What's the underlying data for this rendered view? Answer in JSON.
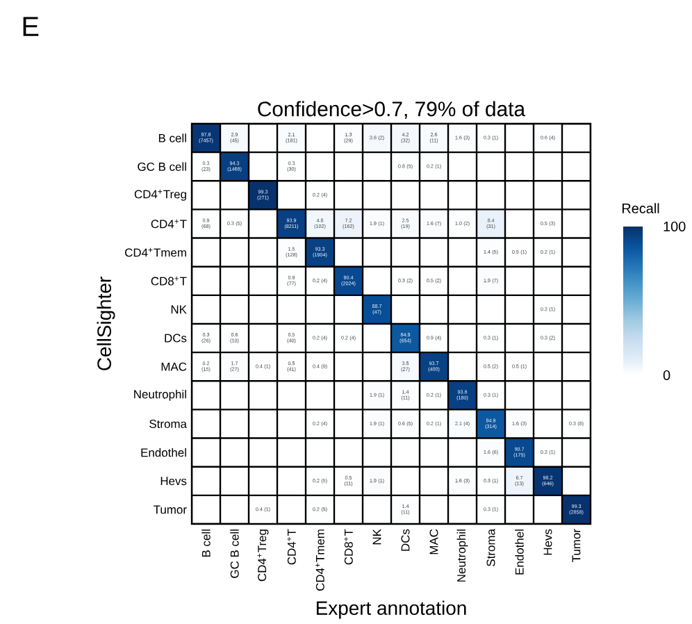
{
  "chart_data": {
    "type": "heatmap",
    "title": "Confidence>0.7, 79% of data",
    "xlabel": "Expert annotation",
    "ylabel": "CellSighter",
    "clabel": "Recall",
    "annotations": [
      "E"
    ],
    "categories": [
      "B cell",
      "GC B cell",
      "CD4$^{+}$Treg",
      "CD4$^{+}$T",
      "CD4$^{+}$Tmem",
      "CD8$^{+}$T",
      "NK",
      "DCs",
      "MAC",
      "Neutrophil",
      "Stroma",
      "Endothel",
      "Hevs",
      "Tumor"
    ],
    "y_categories": [
      "B cell",
      "GC B cell",
      "CD4$^{+}$Treg",
      "CD4$^{+}$T",
      "CD4$^{+}$Tmem",
      "CD8$^{+}$T",
      "NK",
      "DCs",
      "MAC",
      "Neutrophil",
      "Stroma",
      "Endothel",
      "Hevs",
      "Tumor"
    ],
    "cells": [
      [
        97.8,
        2.9,
        null,
        2.1,
        null,
        1.3,
        3.8,
        4.2,
        2.6,
        1.6,
        0.3,
        null,
        0.6,
        null
      ],
      [
        0.3,
        94.3,
        null,
        0.3,
        null,
        null,
        null,
        0.8,
        0.2,
        null,
        null,
        null,
        null,
        null
      ],
      [
        null,
        null,
        99.3,
        null,
        0.2,
        null,
        null,
        null,
        null,
        null,
        null,
        null,
        null,
        null
      ],
      [
        0.9,
        0.3,
        null,
        93.9,
        4.8,
        7.2,
        1.9,
        2.5,
        1.6,
        1.0,
        8.4,
        null,
        0.5,
        null
      ],
      [
        null,
        null,
        null,
        1.5,
        93.3,
        null,
        null,
        null,
        null,
        null,
        1.4,
        0.5,
        0.2,
        null
      ],
      [
        null,
        null,
        null,
        0.9,
        0.2,
        90.4,
        null,
        0.3,
        0.5,
        null,
        1.9,
        null,
        null,
        null
      ],
      [
        null,
        null,
        null,
        null,
        null,
        null,
        88.7,
        null,
        null,
        null,
        null,
        null,
        0.2,
        null
      ],
      [
        0.3,
        0.6,
        null,
        0.5,
        0.2,
        0.2,
        null,
        84.9,
        0.9,
        null,
        0.3,
        null,
        0.3,
        null
      ],
      [
        0.2,
        1.7,
        0.4,
        0.5,
        0.4,
        null,
        null,
        3.5,
        93.7,
        null,
        0.5,
        0.5,
        null,
        null
      ],
      [
        null,
        null,
        null,
        null,
        null,
        null,
        1.9,
        1.4,
        0.2,
        93.8,
        0.3,
        null,
        null,
        null
      ],
      [
        null,
        null,
        null,
        null,
        0.2,
        null,
        1.9,
        0.6,
        0.2,
        2.1,
        84.9,
        1.6,
        null,
        0.3
      ],
      [
        null,
        null,
        null,
        null,
        null,
        null,
        null,
        null,
        null,
        null,
        1.6,
        90.7,
        0.2,
        null
      ],
      [
        null,
        null,
        null,
        null,
        0.2,
        0.5,
        1.9,
        null,
        null,
        1.6,
        0.3,
        6.7,
        98.2,
        null
      ],
      [
        null,
        null,
        0.4,
        null,
        0.2,
        null,
        null,
        1.4,
        null,
        null,
        0.3,
        null,
        null,
        99.3
      ]
    ],
    "cell_labels": [
      [
        "97.8 (7457)",
        "2.9 (45)",
        null,
        "2.1 (181)",
        null,
        "1.3 (29)",
        "3.8 (2)",
        "4.2 (32)",
        "2.6 (11)",
        "1.6 (3)",
        "0.3 (1)",
        null,
        "0.6 (4)",
        null
      ],
      [
        "0.3 (23)",
        "94.3 (1468)",
        null,
        "0.3 (30)",
        null,
        null,
        null,
        "0.8 (5)",
        "0.2 (1)",
        null,
        null,
        null,
        null,
        null
      ],
      [
        null,
        null,
        "99.3 (271)",
        null,
        "0.2 (4)",
        null,
        null,
        null,
        null,
        null,
        null,
        null,
        null,
        null
      ],
      [
        "0.9 (68)",
        "0.3 (5)",
        null,
        "93.9 (8211)",
        "4.8 (102)",
        "7.2 (162)",
        "1.9 (1)",
        "2.5 (19)",
        "1.6 (7)",
        "1.0 (2)",
        "8.4 (31)",
        null,
        "0.5 (3)",
        null
      ],
      [
        null,
        null,
        null,
        "1.5 (128)",
        "93.3 (1904)",
        null,
        null,
        null,
        null,
        null,
        "1.4 (5)",
        "0.5 (1)",
        "0.2 (1)",
        null
      ],
      [
        null,
        null,
        null,
        "0.9 (77)",
        "0.2 (4)",
        "90.4 (2024)",
        null,
        "0.3 (2)",
        "0.5 (2)",
        null,
        "1.9 (7)",
        null,
        null,
        null
      ],
      [
        null,
        null,
        null,
        null,
        null,
        null,
        "88.7 (47)",
        null,
        null,
        null,
        null,
        null,
        "0.2 (1)",
        null
      ],
      [
        "0.3 (26)",
        "0.6 (10)",
        null,
        "0.5 (40)",
        "0.2 (4)",
        "0.2 (4)",
        null,
        "84.9 (654)",
        "0.9 (4)",
        null,
        "0.3 (1)",
        null,
        "0.3 (2)",
        null
      ],
      [
        "0.2 (15)",
        "1.7 (27)",
        "0.4 (1)",
        "0.5 (41)",
        "0.4 (9)",
        null,
        null,
        "3.5 (27)",
        "93.7 (400)",
        null,
        "0.5 (2)",
        "0.5 (1)",
        null,
        null
      ],
      [
        null,
        null,
        null,
        null,
        null,
        null,
        "1.9 (1)",
        "1.4 (11)",
        "0.2 (1)",
        "93.8 (180)",
        "0.3 (1)",
        null,
        null,
        null
      ],
      [
        null,
        null,
        null,
        null,
        "0.2 (4)",
        null,
        "1.9 (1)",
        "0.6 (5)",
        "0.2 (1)",
        "2.1 (4)",
        "84.9 (314)",
        "1.6 (3)",
        null,
        "0.3 (8)"
      ],
      [
        null,
        null,
        null,
        null,
        null,
        null,
        null,
        null,
        null,
        null,
        "1.6 (6)",
        "90.7 (175)",
        "0.2 (1)",
        null
      ],
      [
        null,
        null,
        null,
        null,
        "0.2 (5)",
        "0.5 (11)",
        "1.9 (1)",
        null,
        null,
        "1.6 (3)",
        "0.3 (1)",
        "6.7 (13)",
        "98.2 (646)",
        null
      ],
      [
        null,
        null,
        "0.4 (1)",
        null,
        "0.2 (5)",
        null,
        null,
        "1.4 (11)",
        null,
        null,
        "0.3 (1)",
        null,
        null,
        "99.3 (2858)"
      ]
    ],
    "clim": [
      0,
      100
    ],
    "cticks": [
      0,
      100
    ]
  }
}
